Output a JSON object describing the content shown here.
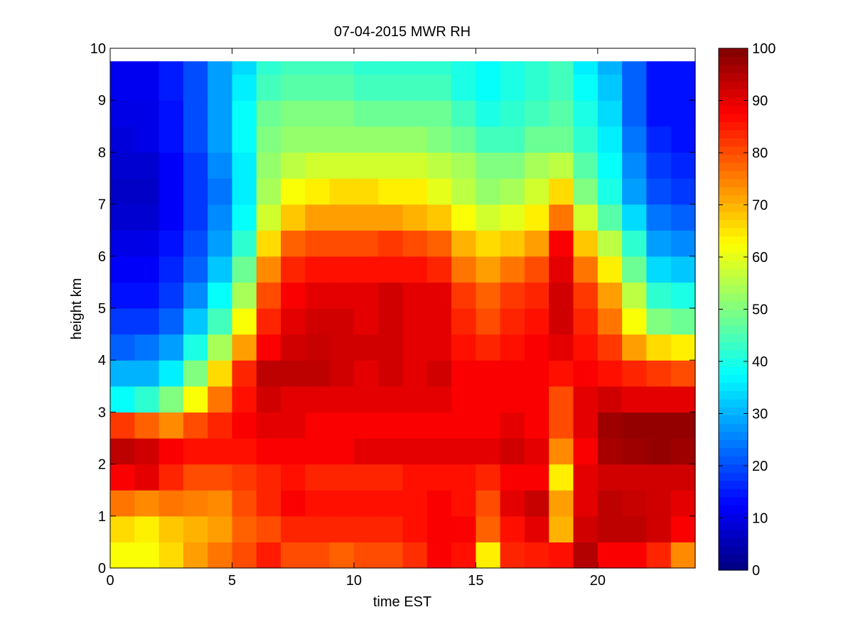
{
  "chart_data": {
    "type": "heatmap",
    "title": "07-04-2015 MWR RH",
    "xlabel": "time EST",
    "ylabel": "height km",
    "xlim": [
      0,
      24
    ],
    "ylim": [
      0,
      10
    ],
    "x_ticks": [
      0,
      5,
      10,
      15,
      20
    ],
    "y_ticks": [
      0,
      1,
      2,
      3,
      4,
      5,
      6,
      7,
      8,
      9,
      10
    ],
    "colorbar": {
      "colormap": "jet",
      "min": 0,
      "max": 100,
      "ticks": [
        0,
        10,
        20,
        30,
        40,
        50,
        60,
        70,
        80,
        90,
        100
      ]
    },
    "grid": false,
    "x": [
      0,
      1,
      2,
      3,
      4,
      5,
      6,
      7,
      8,
      9,
      10,
      11,
      12,
      13,
      14,
      15,
      16,
      17,
      18,
      19,
      20,
      21,
      22,
      23
    ],
    "heights": [
      0,
      0.5,
      1,
      1.5,
      2,
      2.5,
      3,
      3.5,
      4,
      4.5,
      5,
      5.5,
      6,
      6.5,
      7,
      7.5,
      8,
      8.5,
      9,
      9.5
    ],
    "rh_rows": [
      [
        62,
        62,
        66,
        72,
        76,
        80,
        85,
        80,
        80,
        78,
        80,
        80,
        83,
        88,
        86,
        64,
        84,
        85,
        86,
        95,
        88,
        88,
        84,
        74
      ],
      [
        66,
        64,
        68,
        70,
        72,
        78,
        80,
        84,
        84,
        84,
        84,
        84,
        86,
        88,
        88,
        78,
        86,
        90,
        70,
        92,
        94,
        94,
        92,
        88
      ],
      [
        76,
        74,
        76,
        75,
        74,
        80,
        84,
        88,
        86,
        86,
        86,
        86,
        86,
        88,
        86,
        80,
        90,
        93,
        72,
        90,
        94,
        93,
        92,
        90
      ],
      [
        88,
        90,
        84,
        80,
        80,
        82,
        84,
        86,
        84,
        84,
        84,
        84,
        86,
        86,
        86,
        84,
        88,
        88,
        64,
        90,
        92,
        92,
        92,
        92
      ],
      [
        94,
        92,
        88,
        86,
        86,
        86,
        88,
        88,
        88,
        88,
        90,
        90,
        90,
        90,
        90,
        90,
        92,
        90,
        74,
        88,
        96,
        97,
        98,
        97
      ],
      [
        82,
        78,
        74,
        80,
        84,
        88,
        90,
        90,
        88,
        88,
        88,
        88,
        88,
        88,
        88,
        88,
        90,
        88,
        80,
        90,
        97,
        98,
        98,
        98
      ],
      [
        38,
        42,
        50,
        62,
        76,
        86,
        92,
        90,
        90,
        90,
        90,
        90,
        90,
        90,
        88,
        88,
        88,
        88,
        80,
        90,
        92,
        90,
        90,
        90
      ],
      [
        30,
        30,
        36,
        50,
        66,
        84,
        94,
        94,
        94,
        92,
        90,
        92,
        90,
        92,
        88,
        88,
        88,
        88,
        86,
        88,
        86,
        84,
        82,
        80
      ],
      [
        22,
        24,
        28,
        40,
        54,
        72,
        88,
        92,
        93,
        92,
        92,
        92,
        90,
        90,
        86,
        84,
        86,
        88,
        90,
        86,
        82,
        72,
        66,
        64
      ],
      [
        18,
        18,
        22,
        32,
        44,
        62,
        84,
        90,
        92,
        92,
        90,
        92,
        90,
        90,
        84,
        80,
        84,
        86,
        92,
        84,
        76,
        62,
        50,
        48
      ],
      [
        14,
        14,
        18,
        26,
        38,
        54,
        80,
        88,
        90,
        90,
        90,
        92,
        90,
        90,
        82,
        78,
        82,
        84,
        92,
        82,
        72,
        56,
        42,
        40
      ],
      [
        12,
        12,
        16,
        22,
        32,
        48,
        74,
        84,
        86,
        86,
        86,
        86,
        86,
        84,
        76,
        72,
        76,
        80,
        90,
        76,
        64,
        48,
        34,
        32
      ],
      [
        10,
        10,
        14,
        20,
        28,
        42,
        66,
        78,
        80,
        80,
        80,
        82,
        80,
        78,
        70,
        66,
        68,
        72,
        88,
        68,
        56,
        42,
        28,
        26
      ],
      [
        8,
        8,
        12,
        18,
        26,
        38,
        58,
        68,
        72,
        72,
        72,
        72,
        70,
        68,
        62,
        58,
        60,
        64,
        76,
        58,
        46,
        34,
        24,
        22
      ],
      [
        7,
        7,
        12,
        18,
        24,
        36,
        54,
        62,
        64,
        66,
        66,
        64,
        64,
        60,
        56,
        52,
        54,
        58,
        66,
        50,
        40,
        28,
        20,
        18
      ],
      [
        8,
        8,
        12,
        18,
        26,
        36,
        52,
        56,
        58,
        58,
        58,
        58,
        58,
        56,
        54,
        50,
        50,
        54,
        56,
        46,
        38,
        26,
        18,
        16
      ],
      [
        9,
        10,
        14,
        20,
        28,
        38,
        50,
        52,
        52,
        52,
        52,
        52,
        52,
        50,
        48,
        44,
        44,
        48,
        48,
        42,
        36,
        24,
        16,
        14
      ],
      [
        10,
        10,
        14,
        20,
        28,
        38,
        48,
        50,
        50,
        50,
        48,
        48,
        48,
        48,
        44,
        40,
        42,
        44,
        46,
        40,
        34,
        22,
        14,
        14
      ],
      [
        11,
        11,
        15,
        20,
        28,
        36,
        44,
        46,
        46,
        46,
        44,
        44,
        44,
        44,
        40,
        38,
        40,
        42,
        44,
        38,
        32,
        22,
        14,
        14
      ],
      [
        11,
        11,
        15,
        20,
        28,
        34,
        42,
        44,
        44,
        44,
        42,
        42,
        42,
        42,
        40,
        38,
        40,
        42,
        44,
        36,
        30,
        22,
        14,
        14
      ]
    ]
  }
}
